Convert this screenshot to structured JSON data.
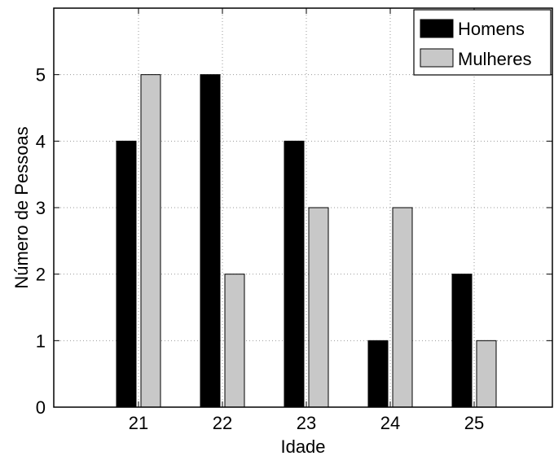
{
  "chart_data": {
    "type": "bar",
    "categories": [
      "21",
      "22",
      "23",
      "24",
      "25"
    ],
    "series": [
      {
        "name": "Homens",
        "values": [
          4,
          5,
          4,
          1,
          2
        ],
        "color": "#000000"
      },
      {
        "name": "Mulheres",
        "values": [
          5,
          2,
          3,
          3,
          1
        ],
        "color": "#c8c8c8"
      }
    ],
    "xlabel": "Idade",
    "ylabel": "Número de Pessoas",
    "ylim": [
      0,
      6
    ],
    "yticks": [
      0,
      1,
      2,
      3,
      4,
      5
    ],
    "grid": true,
    "legend_position": "top-right"
  }
}
